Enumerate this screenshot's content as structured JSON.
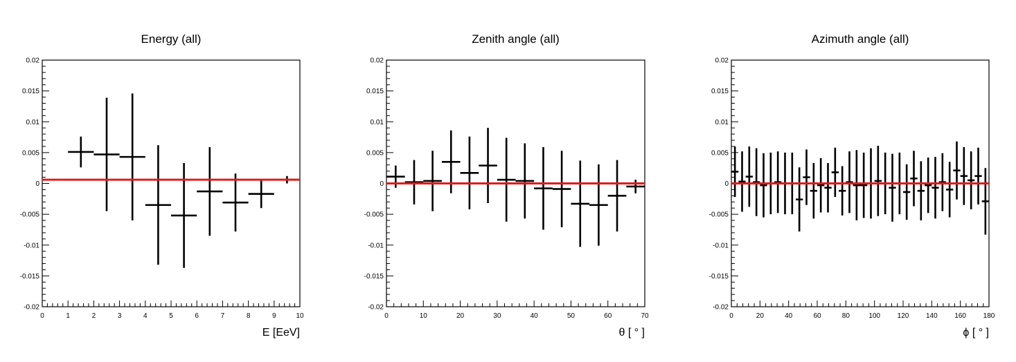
{
  "colors": {
    "fit_line": "#e41a1c",
    "markers": "#000000",
    "frame": "#000000"
  },
  "chart_data": [
    {
      "type": "scatter",
      "title": "Energy (all)",
      "xlabel": "E [EeV]",
      "ylabel": "",
      "xlim": [
        0,
        10
      ],
      "ylim": [
        -0.02,
        0.02
      ],
      "xticks": [
        "0",
        "1",
        "2",
        "3",
        "4",
        "5",
        "6",
        "7",
        "8",
        "9",
        "10"
      ],
      "yticks": [
        "-0.02",
        "-0.015",
        "-0.01",
        "-0.005",
        "0",
        "0.005",
        "0.01",
        "0.015",
        "0.02"
      ],
      "fit_line_value": 0.0006,
      "points": [
        {
          "x": 1.5,
          "xerr": 0.5,
          "y": 0.0051,
          "yerr": 0.0025
        },
        {
          "x": 2.5,
          "xerr": 0.5,
          "y": 0.0047,
          "yerr": 0.0092
        },
        {
          "x": 3.5,
          "xerr": 0.5,
          "y": 0.0043,
          "yerr": 0.0103
        },
        {
          "x": 4.5,
          "xerr": 0.5,
          "y": -0.0035,
          "yerr": 0.0097
        },
        {
          "x": 5.5,
          "xerr": 0.5,
          "y": -0.0052,
          "yerr": 0.0085
        },
        {
          "x": 6.5,
          "xerr": 0.5,
          "y": -0.0013,
          "yerr": 0.0072
        },
        {
          "x": 7.5,
          "xerr": 0.5,
          "y": -0.0031,
          "yerr": 0.0047
        },
        {
          "x": 8.5,
          "xerr": 0.5,
          "y": -0.0017,
          "yerr": 0.0023
        },
        {
          "x": 9.5,
          "xerr": 0.5,
          "y": 0.0006,
          "yerr": 0.0006
        }
      ]
    },
    {
      "type": "scatter",
      "title": "Zenith angle (all)",
      "xlabel": "θ [ ° ]",
      "ylabel": "",
      "xlim": [
        0,
        70
      ],
      "ylim": [
        -0.02,
        0.02
      ],
      "xticks": [
        "0",
        "10",
        "20",
        "30",
        "40",
        "50",
        "60",
        "70"
      ],
      "yticks": [
        "-0.02",
        "-0.015",
        "-0.01",
        "-0.005",
        "0",
        "0.005",
        "0.01",
        "0.015",
        "0.02"
      ],
      "fit_line_value": 0.0,
      "points": [
        {
          "x": 2.5,
          "xerr": 2.5,
          "y": 0.0011,
          "yerr": 0.0018
        },
        {
          "x": 7.5,
          "xerr": 2.5,
          "y": 0.0002,
          "yerr": 0.0036
        },
        {
          "x": 12.5,
          "xerr": 2.5,
          "y": 0.0004,
          "yerr": 0.0049
        },
        {
          "x": 17.5,
          "xerr": 2.5,
          "y": 0.0035,
          "yerr": 0.0051
        },
        {
          "x": 22.5,
          "xerr": 2.5,
          "y": 0.0017,
          "yerr": 0.0059
        },
        {
          "x": 27.5,
          "xerr": 2.5,
          "y": 0.0029,
          "yerr": 0.0061
        },
        {
          "x": 32.5,
          "xerr": 2.5,
          "y": 0.0006,
          "yerr": 0.0068
        },
        {
          "x": 37.5,
          "xerr": 2.5,
          "y": 0.0004,
          "yerr": 0.0061
        },
        {
          "x": 42.5,
          "xerr": 2.5,
          "y": -0.0008,
          "yerr": 0.0067
        },
        {
          "x": 47.5,
          "xerr": 2.5,
          "y": -0.0009,
          "yerr": 0.0062
        },
        {
          "x": 52.5,
          "xerr": 2.5,
          "y": -0.0033,
          "yerr": 0.007
        },
        {
          "x": 57.5,
          "xerr": 2.5,
          "y": -0.0035,
          "yerr": 0.0066
        },
        {
          "x": 62.5,
          "xerr": 2.5,
          "y": -0.002,
          "yerr": 0.0058
        },
        {
          "x": 67.5,
          "xerr": 2.5,
          "y": -0.0005,
          "yerr": 0.0011
        }
      ]
    },
    {
      "type": "scatter",
      "title": "Azimuth angle (all)",
      "xlabel": "ϕ [ ° ]",
      "ylabel": "",
      "xlim": [
        0,
        180
      ],
      "ylim": [
        -0.02,
        0.02
      ],
      "xticks": [
        "0",
        "20",
        "40",
        "60",
        "80",
        "100",
        "120",
        "140",
        "160",
        "180"
      ],
      "yticks": [
        "-0.02",
        "-0.015",
        "-0.01",
        "-0.005",
        "0",
        "0.005",
        "0.01",
        "0.015",
        "0.02"
      ],
      "fit_line_value": 0.0,
      "points": [
        {
          "x": 2.5,
          "xerr": 2.5,
          "y": 0.0019,
          "yerr": 0.0041
        },
        {
          "x": 7.5,
          "xerr": 2.5,
          "y": 0.0003,
          "yerr": 0.0049
        },
        {
          "x": 12.5,
          "xerr": 2.5,
          "y": 0.0011,
          "yerr": 0.0049
        },
        {
          "x": 17.5,
          "xerr": 2.5,
          "y": 0.0002,
          "yerr": 0.0055
        },
        {
          "x": 22.5,
          "xerr": 2.5,
          "y": -0.0003,
          "yerr": 0.0052
        },
        {
          "x": 27.5,
          "xerr": 2.5,
          "y": 0.0,
          "yerr": 0.005
        },
        {
          "x": 32.5,
          "xerr": 2.5,
          "y": 0.0002,
          "yerr": 0.005
        },
        {
          "x": 37.5,
          "xerr": 2.5,
          "y": 0.0,
          "yerr": 0.005
        },
        {
          "x": 42.5,
          "xerr": 2.5,
          "y": 0.0,
          "yerr": 0.005
        },
        {
          "x": 47.5,
          "xerr": 2.5,
          "y": -0.0026,
          "yerr": 0.0052
        },
        {
          "x": 52.5,
          "xerr": 2.5,
          "y": 0.001,
          "yerr": 0.0045
        },
        {
          "x": 57.5,
          "xerr": 2.5,
          "y": -0.0012,
          "yerr": 0.0045
        },
        {
          "x": 62.5,
          "xerr": 2.5,
          "y": -0.0003,
          "yerr": 0.0044
        },
        {
          "x": 67.5,
          "xerr": 2.5,
          "y": -0.0007,
          "yerr": 0.004
        },
        {
          "x": 72.5,
          "xerr": 2.5,
          "y": 0.0018,
          "yerr": 0.004
        },
        {
          "x": 77.5,
          "xerr": 2.5,
          "y": -0.0012,
          "yerr": 0.004
        },
        {
          "x": 82.5,
          "xerr": 2.5,
          "y": 0.0002,
          "yerr": 0.005
        },
        {
          "x": 87.5,
          "xerr": 2.5,
          "y": -0.0003,
          "yerr": 0.0057
        },
        {
          "x": 92.5,
          "xerr": 2.5,
          "y": -0.0003,
          "yerr": 0.0053
        },
        {
          "x": 97.5,
          "xerr": 2.5,
          "y": 0.0,
          "yerr": 0.0057
        },
        {
          "x": 102.5,
          "xerr": 2.5,
          "y": 0.0004,
          "yerr": 0.0057
        },
        {
          "x": 107.5,
          "xerr": 2.5,
          "y": 0.0,
          "yerr": 0.005
        },
        {
          "x": 112.5,
          "xerr": 2.5,
          "y": -0.0007,
          "yerr": 0.0055
        },
        {
          "x": 117.5,
          "xerr": 2.5,
          "y": 0.0,
          "yerr": 0.005
        },
        {
          "x": 122.5,
          "xerr": 2.5,
          "y": -0.0014,
          "yerr": 0.0045
        },
        {
          "x": 127.5,
          "xerr": 2.5,
          "y": 0.0008,
          "yerr": 0.0045
        },
        {
          "x": 132.5,
          "xerr": 2.5,
          "y": -0.0012,
          "yerr": 0.0048
        },
        {
          "x": 137.5,
          "xerr": 2.5,
          "y": -0.0003,
          "yerr": 0.0045
        },
        {
          "x": 142.5,
          "xerr": 2.5,
          "y": -0.0007,
          "yerr": 0.005
        },
        {
          "x": 147.5,
          "xerr": 2.5,
          "y": 0.0002,
          "yerr": 0.0047
        },
        {
          "x": 152.5,
          "xerr": 2.5,
          "y": -0.001,
          "yerr": 0.0045
        },
        {
          "x": 157.5,
          "xerr": 2.5,
          "y": 0.0021,
          "yerr": 0.0047
        },
        {
          "x": 162.5,
          "xerr": 2.5,
          "y": 0.0012,
          "yerr": 0.0047
        },
        {
          "x": 167.5,
          "xerr": 2.5,
          "y": 0.0005,
          "yerr": 0.0047
        },
        {
          "x": 172.5,
          "xerr": 2.5,
          "y": 0.0012,
          "yerr": 0.0046
        },
        {
          "x": 177.5,
          "xerr": 2.5,
          "y": -0.0029,
          "yerr": 0.0054
        }
      ]
    }
  ]
}
